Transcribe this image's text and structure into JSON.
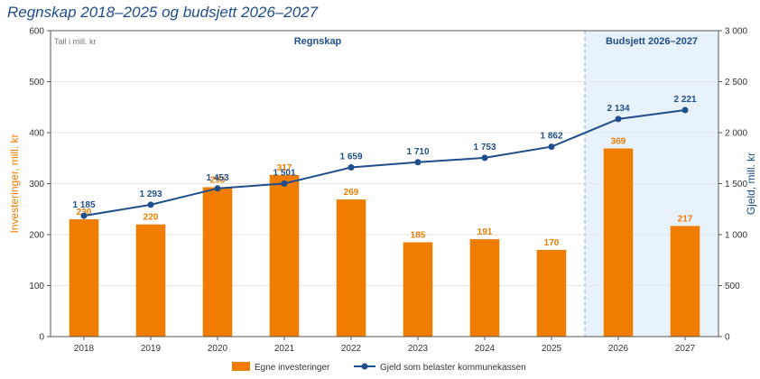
{
  "chart_data": {
    "type": "bar+line",
    "title": "Regnskap 2018–2025 og budsjett 2026–2027",
    "unit_note": "Tall i mill. kr",
    "categories": [
      "2018",
      "2019",
      "2020",
      "2021",
      "2022",
      "2023",
      "2024",
      "2025",
      "2026",
      "2027"
    ],
    "section_labels": {
      "actual": "Regnskap",
      "budget": "Budsjett 2026–2027"
    },
    "budget_start_category": "2026",
    "series": [
      {
        "name": "Egne investeringer",
        "kind": "bar",
        "axis": "left",
        "color": "#f07c00",
        "values": [
          230,
          220,
          293,
          317,
          269,
          185,
          191,
          170,
          369,
          217
        ],
        "labels": [
          "230",
          "220",
          "293",
          "317",
          "269",
          "185",
          "191",
          "170",
          "369",
          "217"
        ]
      },
      {
        "name": "Gjeld som belaster kommunekassen",
        "kind": "line",
        "axis": "right",
        "color": "#1f4e8c",
        "values": [
          1185,
          1293,
          1453,
          1501,
          1659,
          1710,
          1753,
          1862,
          2134,
          2221
        ],
        "labels": [
          "1 185",
          "1 293",
          "1 453",
          "1 501",
          "1 659",
          "1 710",
          "1 753",
          "1 862",
          "2 134",
          "2 221"
        ]
      }
    ],
    "y_left": {
      "label": "Investeringer, mill. kr",
      "ylim": [
        0,
        600
      ],
      "ticks": [
        "0",
        "100",
        "200",
        "300",
        "400",
        "500",
        "600"
      ],
      "tick_values": [
        0,
        100,
        200,
        300,
        400,
        500,
        600
      ]
    },
    "y_right": {
      "label": "Gjeld, mill. kr",
      "ylim": [
        0,
        3000
      ],
      "ticks": [
        "0",
        "500",
        "1 000",
        "1 500",
        "2 000",
        "2 500",
        "3 000"
      ],
      "tick_values": [
        0,
        500,
        1000,
        1500,
        2000,
        2500,
        3000
      ]
    },
    "grid": true,
    "legend": "bottom-center",
    "colors": {
      "bar": "#f07c00",
      "line": "#1f4e8c",
      "budget_bg": "#e8f2fc",
      "left_axis_label": "#f07c00",
      "right_axis_label": "#1f4e8c"
    }
  }
}
